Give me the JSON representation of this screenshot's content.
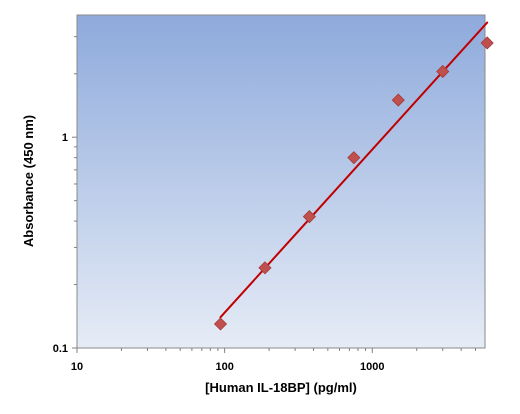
{
  "chart_data": {
    "type": "scatter",
    "title": "",
    "xlabel": "[Human IL-18BP] (pg/ml)",
    "ylabel": "Absorbance (450 nm)",
    "x_scale": "log",
    "y_scale": "log",
    "xlim": [
      10,
      5800
    ],
    "ylim": [
      0.1,
      3.8
    ],
    "x_ticks": [
      10,
      100,
      1000
    ],
    "x_tick_labels": [
      "10",
      "100",
      "1000"
    ],
    "y_ticks": [
      0.1,
      1
    ],
    "y_tick_labels": [
      "0.1",
      "1"
    ],
    "grid": false,
    "legend": "none",
    "series": [
      {
        "kind": "points",
        "marker": "diamond",
        "color": "#c0504d",
        "x": [
          93.75,
          187.5,
          375,
          750,
          1500,
          3000,
          6000
        ],
        "y": [
          0.13,
          0.24,
          0.42,
          0.8,
          1.5,
          2.05,
          2.8
        ]
      },
      {
        "kind": "fit-line",
        "color": "#c00000",
        "x": [
          93.75,
          6000
        ],
        "y": [
          0.14,
          3.5
        ]
      }
    ],
    "colors": {
      "background_top": "#8eaadc",
      "background_bottom": "#e6ecf6",
      "marker": "#c0504d",
      "marker_edge": "#a33a37",
      "fit_line": "#c00000"
    }
  }
}
